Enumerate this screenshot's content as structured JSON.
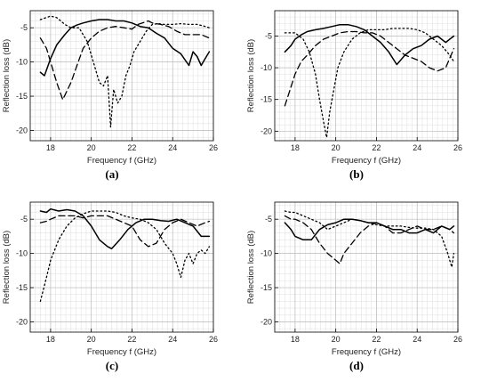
{
  "chart_data": [
    {
      "type": "line",
      "panel_label": "(a)",
      "xlabel": "Frequency f (GHz)",
      "ylabel": "Reflection loss (dB)",
      "xlim": [
        17.0,
        26.0
      ],
      "ylim": [
        -21.5,
        -2.5
      ],
      "xticks": [
        18,
        20,
        22,
        24,
        26
      ],
      "yticks": [
        -5,
        -10,
        -15,
        -20
      ],
      "grid": true,
      "series": [
        {
          "style": "solid",
          "x": [
            17.5,
            17.7,
            18.0,
            18.3,
            18.7,
            19.0,
            19.3,
            19.6,
            20.0,
            20.4,
            20.8,
            21.2,
            21.6,
            22.0,
            22.4,
            22.8,
            23.2,
            23.6,
            24.0,
            24.4,
            24.8,
            25.0,
            25.2,
            25.4,
            25.6,
            25.8
          ],
          "y": [
            -11.5,
            -12.0,
            -9.5,
            -7.5,
            -6.0,
            -5.0,
            -4.6,
            -4.3,
            -4.0,
            -3.8,
            -3.8,
            -4.0,
            -4.0,
            -4.3,
            -4.8,
            -5.0,
            -5.8,
            -6.5,
            -8.0,
            -8.8,
            -10.5,
            -8.5,
            -9.2,
            -10.5,
            -9.5,
            -8.5
          ]
        },
        {
          "style": "dashed",
          "x": [
            17.5,
            17.8,
            18.0,
            18.3,
            18.6,
            19.0,
            19.3,
            19.6,
            20.0,
            20.4,
            20.8,
            21.2,
            21.6,
            22.0,
            22.3,
            22.6,
            22.8,
            23.0,
            23.4,
            23.8,
            24.2,
            24.6,
            25.0,
            25.4,
            25.8
          ],
          "y": [
            -6.5,
            -8.0,
            -10.0,
            -13.0,
            -15.5,
            -13.0,
            -10.5,
            -8.0,
            -6.5,
            -5.5,
            -5.0,
            -4.8,
            -5.0,
            -5.2,
            -4.5,
            -4.2,
            -4.0,
            -4.3,
            -4.5,
            -4.8,
            -5.5,
            -6.0,
            -6.0,
            -6.0,
            -6.5
          ]
        },
        {
          "style": "dotted",
          "x": [
            17.5,
            17.8,
            18.0,
            18.3,
            18.7,
            19.0,
            19.4,
            19.8,
            20.1,
            20.4,
            20.6,
            20.8,
            20.95,
            21.1,
            21.3,
            21.5,
            21.7,
            21.9,
            22.1,
            22.4,
            22.7,
            23.0,
            23.3,
            23.6,
            24.0,
            24.4,
            24.8,
            25.2,
            25.6,
            25.8
          ],
          "y": [
            -3.8,
            -3.5,
            -3.3,
            -3.5,
            -4.5,
            -5.0,
            -5.0,
            -7.0,
            -10.0,
            -13.0,
            -13.5,
            -12.0,
            -19.5,
            -14.0,
            -16.0,
            -15.0,
            -12.0,
            -10.5,
            -8.5,
            -7.0,
            -5.5,
            -4.5,
            -4.4,
            -4.5,
            -4.5,
            -4.4,
            -4.5,
            -4.5,
            -4.8,
            -5.0
          ]
        }
      ]
    },
    {
      "type": "line",
      "panel_label": "(b)",
      "xlabel": "Frequency f (GHz)",
      "ylabel": "Reflection loss (dB)",
      "xlim": [
        17.0,
        26.0
      ],
      "ylim": [
        -21.5,
        -1.0
      ],
      "xticks": [
        18,
        20,
        22,
        24,
        26
      ],
      "yticks": [
        -5,
        -10,
        -15,
        -20
      ],
      "grid": true,
      "series": [
        {
          "style": "solid",
          "x": [
            17.5,
            17.8,
            18.0,
            18.3,
            18.6,
            19.0,
            19.4,
            19.8,
            20.2,
            20.6,
            21.0,
            21.4,
            21.8,
            22.2,
            22.6,
            23.0,
            23.4,
            23.8,
            24.2,
            24.6,
            25.0,
            25.4,
            25.8
          ],
          "y": [
            -7.5,
            -6.5,
            -5.5,
            -4.8,
            -4.3,
            -4.0,
            -3.8,
            -3.5,
            -3.2,
            -3.2,
            -3.5,
            -4.0,
            -5.0,
            -6.0,
            -7.5,
            -9.5,
            -8.0,
            -7.0,
            -6.5,
            -5.5,
            -5.0,
            -6.0,
            -5.0
          ]
        },
        {
          "style": "dashed",
          "x": [
            17.5,
            17.8,
            18.0,
            18.3,
            18.6,
            19.0,
            19.4,
            19.8,
            20.2,
            20.6,
            21.0,
            21.4,
            21.8,
            22.2,
            22.6,
            23.0,
            23.4,
            23.8,
            24.2,
            24.6,
            25.0,
            25.4,
            25.8
          ],
          "y": [
            -16.0,
            -13.0,
            -11.0,
            -9.0,
            -8.0,
            -6.5,
            -5.5,
            -5.0,
            -4.5,
            -4.3,
            -4.3,
            -4.5,
            -4.5,
            -5.0,
            -6.0,
            -7.0,
            -8.0,
            -8.5,
            -9.0,
            -10.0,
            -10.5,
            -10.0,
            -7.0
          ]
        },
        {
          "style": "dotted",
          "x": [
            17.5,
            18.0,
            18.4,
            18.7,
            19.0,
            19.2,
            19.4,
            19.55,
            19.7,
            19.9,
            20.1,
            20.4,
            20.8,
            21.2,
            21.6,
            22.0,
            22.4,
            22.8,
            23.2,
            23.6,
            24.0,
            24.4,
            24.8,
            25.2,
            25.6,
            25.8
          ],
          "y": [
            -4.5,
            -4.5,
            -5.5,
            -7.5,
            -11.0,
            -15.0,
            -18.5,
            -21.0,
            -17.0,
            -13.5,
            -10.0,
            -7.5,
            -5.5,
            -4.5,
            -4.0,
            -4.0,
            -4.0,
            -3.8,
            -3.8,
            -3.8,
            -4.0,
            -4.5,
            -5.5,
            -6.5,
            -8.0,
            -9.0
          ]
        }
      ]
    },
    {
      "type": "line",
      "panel_label": "(c)",
      "xlabel": "Frequency f (GHz)",
      "ylabel": "Reflection loss (dB)",
      "xlim": [
        17.0,
        26.0
      ],
      "ylim": [
        -21.5,
        -2.5
      ],
      "xticks": [
        18,
        20,
        22,
        24,
        26
      ],
      "yticks": [
        -5,
        -10,
        -15,
        -20
      ],
      "grid": true,
      "series": [
        {
          "style": "solid",
          "x": [
            17.5,
            17.8,
            18.0,
            18.4,
            18.8,
            19.2,
            19.6,
            20.0,
            20.4,
            20.8,
            21.0,
            21.4,
            21.8,
            22.2,
            22.6,
            23.0,
            23.4,
            23.8,
            24.2,
            24.6,
            25.0,
            25.4,
            25.8
          ],
          "y": [
            -3.8,
            -4.0,
            -3.5,
            -3.8,
            -3.6,
            -3.8,
            -4.5,
            -6.0,
            -8.0,
            -9.0,
            -9.3,
            -8.0,
            -6.5,
            -5.5,
            -5.0,
            -5.0,
            -5.2,
            -5.3,
            -5.0,
            -5.5,
            -6.0,
            -7.5,
            -7.5
          ]
        },
        {
          "style": "dashed",
          "x": [
            17.5,
            17.8,
            18.0,
            18.4,
            18.8,
            19.2,
            19.6,
            20.0,
            20.4,
            20.8,
            21.2,
            21.6,
            22.0,
            22.4,
            22.8,
            23.2,
            23.6,
            24.0,
            24.4,
            24.8,
            25.2,
            25.6,
            25.8
          ],
          "y": [
            -5.5,
            -5.3,
            -5.0,
            -4.5,
            -4.5,
            -4.5,
            -4.8,
            -4.5,
            -4.5,
            -4.5,
            -5.0,
            -5.5,
            -6.0,
            -8.0,
            -9.0,
            -8.5,
            -6.5,
            -5.5,
            -5.0,
            -5.5,
            -6.0,
            -5.5,
            -5.3
          ]
        },
        {
          "style": "dotted",
          "x": [
            17.5,
            17.8,
            18.0,
            18.4,
            18.8,
            19.2,
            19.6,
            20.0,
            20.4,
            20.8,
            21.2,
            21.6,
            22.0,
            22.4,
            22.8,
            23.2,
            23.6,
            24.0,
            24.2,
            24.4,
            24.6,
            24.8,
            25.0,
            25.2,
            25.4,
            25.6,
            25.8
          ],
          "y": [
            -17.0,
            -13.5,
            -11.0,
            -8.0,
            -6.0,
            -4.8,
            -4.2,
            -3.8,
            -3.8,
            -3.8,
            -4.0,
            -4.5,
            -4.8,
            -5.0,
            -5.5,
            -6.5,
            -8.5,
            -10.0,
            -11.5,
            -13.5,
            -11.0,
            -10.0,
            -11.5,
            -10.0,
            -9.5,
            -10.0,
            -9.0
          ]
        }
      ]
    },
    {
      "type": "line",
      "panel_label": "(d)",
      "xlabel": "Frequency f (GHz)",
      "ylabel": "Reflection loss (dB)",
      "xlim": [
        17.0,
        26.0
      ],
      "ylim": [
        -21.5,
        -2.5
      ],
      "xticks": [
        18,
        20,
        22,
        24,
        26
      ],
      "yticks": [
        -5,
        -10,
        -15,
        -20
      ],
      "grid": true,
      "series": [
        {
          "style": "solid",
          "x": [
            17.5,
            17.8,
            18.0,
            18.4,
            18.8,
            19.2,
            19.6,
            20.0,
            20.4,
            20.8,
            21.2,
            21.6,
            22.0,
            22.4,
            22.8,
            23.2,
            23.6,
            24.0,
            24.4,
            24.8,
            25.2,
            25.6,
            25.8
          ],
          "y": [
            -5.5,
            -6.5,
            -7.5,
            -8.0,
            -8.0,
            -6.5,
            -5.8,
            -5.5,
            -5.0,
            -5.0,
            -5.2,
            -5.5,
            -5.5,
            -6.0,
            -6.5,
            -6.5,
            -7.0,
            -7.0,
            -6.5,
            -7.0,
            -6.0,
            -6.5,
            -6.0
          ]
        },
        {
          "style": "dashed",
          "x": [
            17.5,
            17.8,
            18.0,
            18.4,
            18.8,
            19.2,
            19.6,
            20.0,
            20.2,
            20.4,
            20.8,
            21.2,
            21.6,
            22.0,
            22.4,
            22.8,
            23.2,
            23.6,
            24.0,
            24.4,
            24.8,
            25.2,
            25.6,
            25.8
          ],
          "y": [
            -4.5,
            -5.0,
            -5.0,
            -5.5,
            -6.5,
            -8.5,
            -10.0,
            -11.0,
            -11.5,
            -10.0,
            -8.5,
            -7.0,
            -6.0,
            -5.5,
            -6.0,
            -7.0,
            -7.0,
            -6.5,
            -6.0,
            -6.5,
            -6.5,
            -6.0,
            -6.5,
            -7.0
          ]
        },
        {
          "style": "dotted",
          "x": [
            17.5,
            17.8,
            18.0,
            18.4,
            18.8,
            19.2,
            19.6,
            20.0,
            20.4,
            20.8,
            21.2,
            21.6,
            22.0,
            22.4,
            22.8,
            23.2,
            23.6,
            24.0,
            24.4,
            24.8,
            25.2,
            25.5,
            25.7,
            25.8
          ],
          "y": [
            -3.8,
            -4.0,
            -4.0,
            -4.5,
            -5.0,
            -5.5,
            -6.5,
            -6.0,
            -5.5,
            -5.0,
            -5.2,
            -5.5,
            -5.8,
            -6.0,
            -6.0,
            -6.0,
            -6.2,
            -6.3,
            -6.3,
            -6.5,
            -7.5,
            -10.0,
            -12.0,
            -10.0
          ]
        }
      ]
    }
  ]
}
